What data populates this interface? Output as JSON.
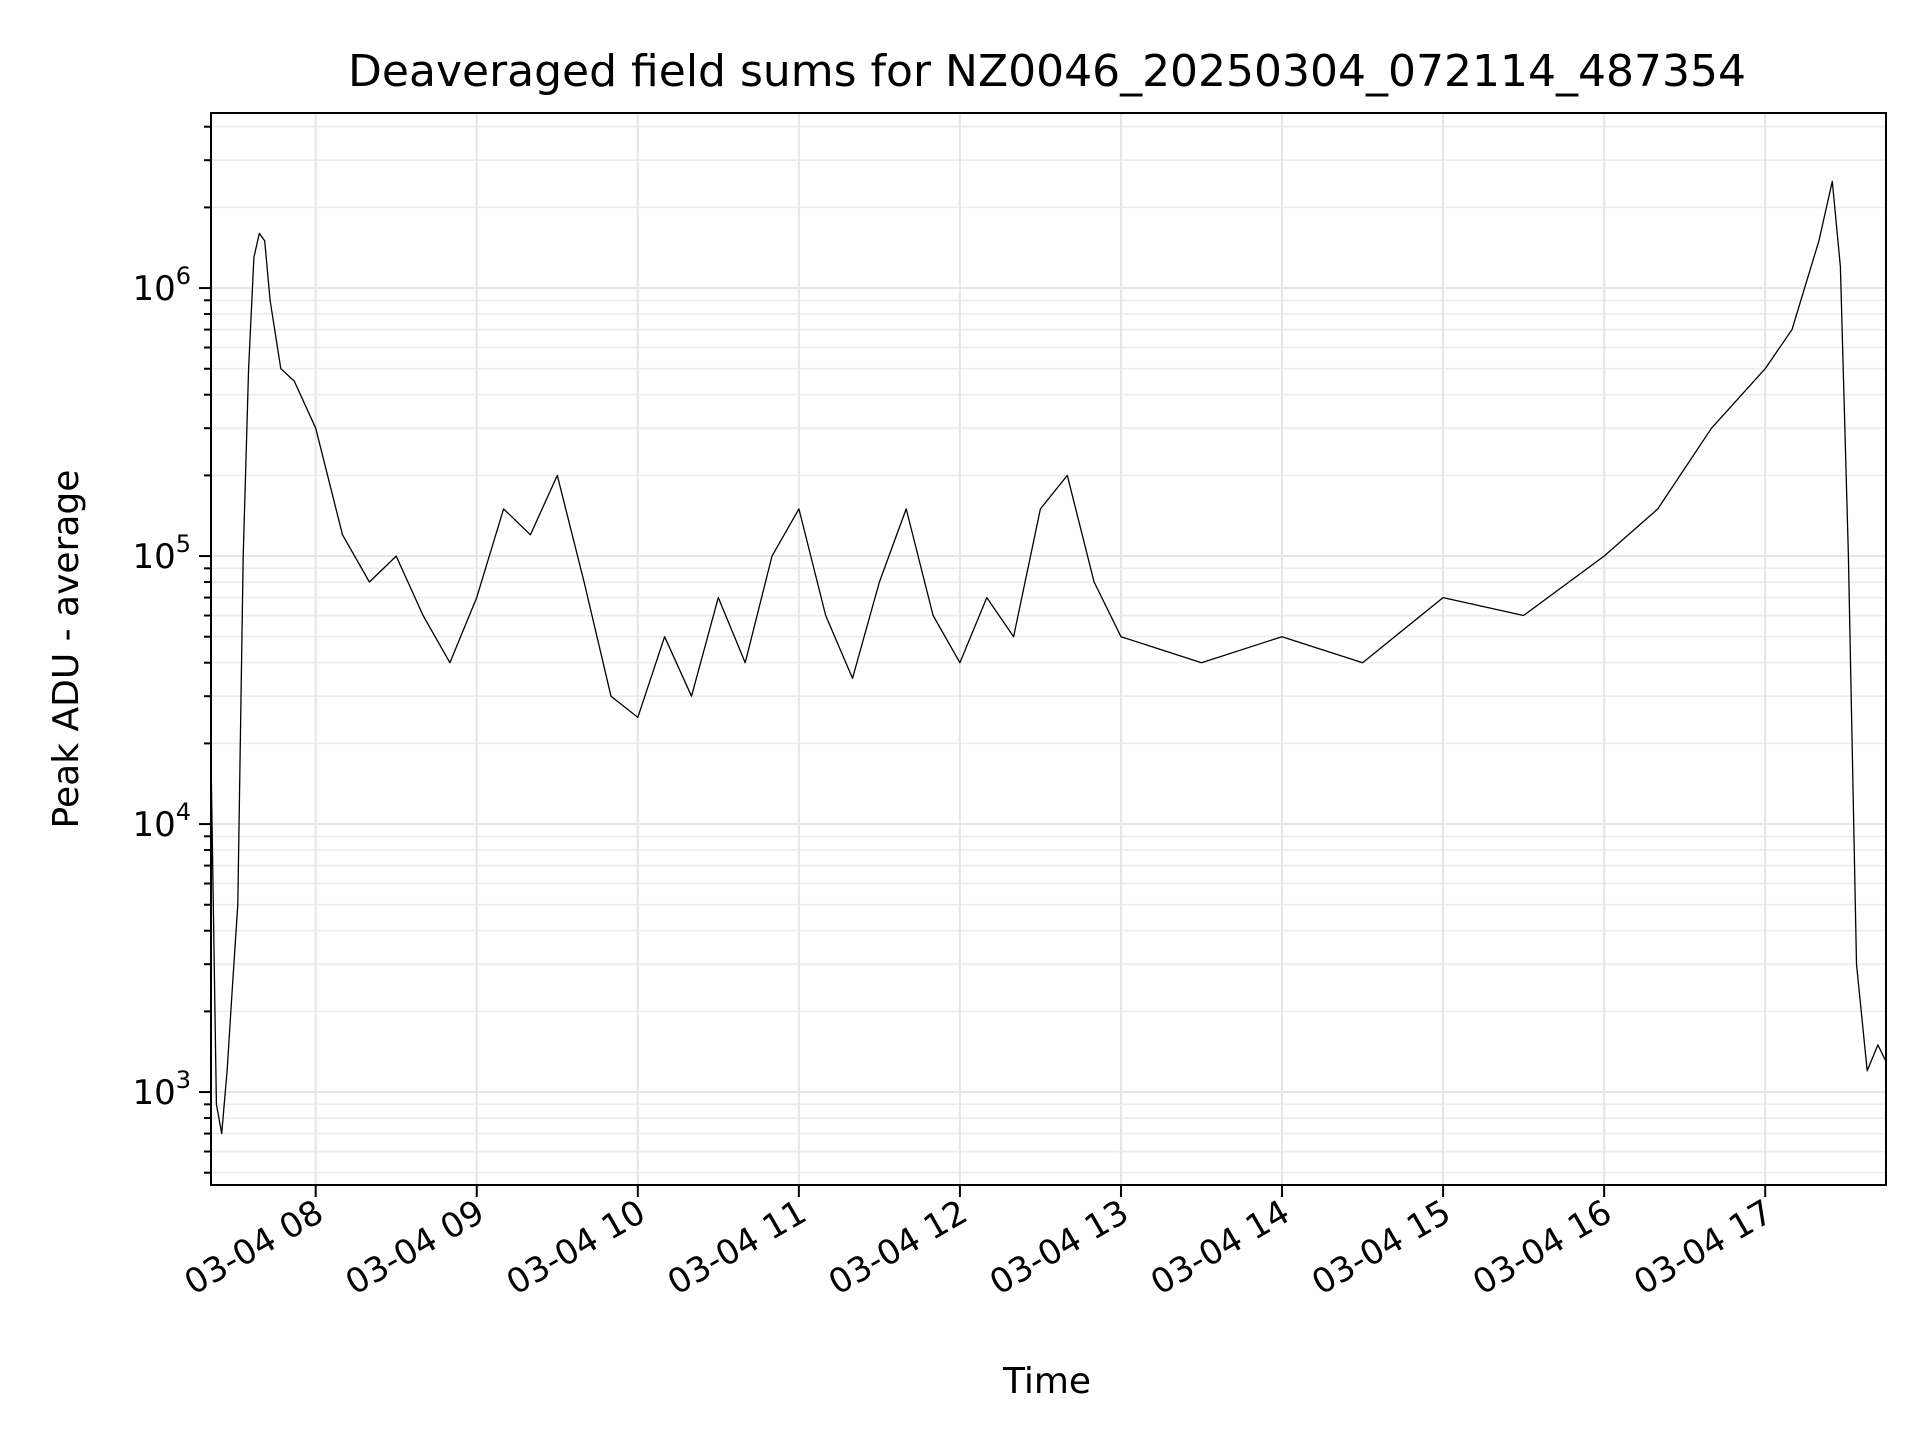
{
  "chart_data": {
    "type": "line",
    "title": "Deaveraged field sums for NZ0046_20250304_072114_487354",
    "xlabel": "Time",
    "ylabel": "Peak ADU - average",
    "yscale": "log",
    "grid": true,
    "x_range": [
      "2025-03-04 07:21",
      "2025-03-04 17:45"
    ],
    "ylim": [
      450,
      4500000
    ],
    "x_ticks": [
      {
        "label": "03-04 08",
        "time": "2025-03-04 08:00"
      },
      {
        "label": "03-04 09",
        "time": "2025-03-04 09:00"
      },
      {
        "label": "03-04 10",
        "time": "2025-03-04 10:00"
      },
      {
        "label": "03-04 11",
        "time": "2025-03-04 11:00"
      },
      {
        "label": "03-04 12",
        "time": "2025-03-04 12:00"
      },
      {
        "label": "03-04 13",
        "time": "2025-03-04 13:00"
      },
      {
        "label": "03-04 14",
        "time": "2025-03-04 14:00"
      },
      {
        "label": "03-04 15",
        "time": "2025-03-04 15:00"
      },
      {
        "label": "03-04 16",
        "time": "2025-03-04 16:00"
      },
      {
        "label": "03-04 17",
        "time": "2025-03-04 17:00"
      }
    ],
    "y_ticks": [
      {
        "base": "10",
        "exp": "3",
        "value": 1000
      },
      {
        "base": "10",
        "exp": "4",
        "value": 10000
      },
      {
        "base": "10",
        "exp": "5",
        "value": 100000
      },
      {
        "base": "10",
        "exp": "6",
        "value": 1000000
      }
    ],
    "series": [
      {
        "color": "#000000",
        "points": [
          [
            "2025-03-04 07:21",
            18000
          ],
          [
            "2025-03-04 07:23",
            900
          ],
          [
            "2025-03-04 07:25",
            700
          ],
          [
            "2025-03-04 07:27",
            1200
          ],
          [
            "2025-03-04 07:29",
            2500
          ],
          [
            "2025-03-04 07:31",
            5000
          ],
          [
            "2025-03-04 07:33",
            100000
          ],
          [
            "2025-03-04 07:35",
            500000
          ],
          [
            "2025-03-04 07:37",
            1300000
          ],
          [
            "2025-03-04 07:39",
            1600000
          ],
          [
            "2025-03-04 07:41",
            1500000
          ],
          [
            "2025-03-04 07:43",
            900000
          ],
          [
            "2025-03-04 07:47",
            500000
          ],
          [
            "2025-03-04 07:52",
            450000
          ],
          [
            "2025-03-04 08:00",
            300000
          ],
          [
            "2025-03-04 08:10",
            120000
          ],
          [
            "2025-03-04 08:20",
            80000
          ],
          [
            "2025-03-04 08:30",
            100000
          ],
          [
            "2025-03-04 08:40",
            60000
          ],
          [
            "2025-03-04 08:50",
            40000
          ],
          [
            "2025-03-04 09:00",
            70000
          ],
          [
            "2025-03-04 09:10",
            150000
          ],
          [
            "2025-03-04 09:20",
            120000
          ],
          [
            "2025-03-04 09:30",
            200000
          ],
          [
            "2025-03-04 09:40",
            80000
          ],
          [
            "2025-03-04 09:50",
            30000
          ],
          [
            "2025-03-04 10:00",
            25000
          ],
          [
            "2025-03-04 10:10",
            50000
          ],
          [
            "2025-03-04 10:20",
            30000
          ],
          [
            "2025-03-04 10:30",
            70000
          ],
          [
            "2025-03-04 10:40",
            40000
          ],
          [
            "2025-03-04 10:50",
            100000
          ],
          [
            "2025-03-04 11:00",
            150000
          ],
          [
            "2025-03-04 11:10",
            60000
          ],
          [
            "2025-03-04 11:20",
            35000
          ],
          [
            "2025-03-04 11:30",
            80000
          ],
          [
            "2025-03-04 11:40",
            150000
          ],
          [
            "2025-03-04 11:50",
            60000
          ],
          [
            "2025-03-04 12:00",
            40000
          ],
          [
            "2025-03-04 12:10",
            70000
          ],
          [
            "2025-03-04 12:20",
            50000
          ],
          [
            "2025-03-04 12:30",
            150000
          ],
          [
            "2025-03-04 12:40",
            200000
          ],
          [
            "2025-03-04 12:50",
            80000
          ],
          [
            "2025-03-04 13:00",
            50000
          ],
          [
            "2025-03-04 13:30",
            40000
          ],
          [
            "2025-03-04 14:00",
            50000
          ],
          [
            "2025-03-04 14:30",
            40000
          ],
          [
            "2025-03-04 15:00",
            70000
          ],
          [
            "2025-03-04 15:30",
            60000
          ],
          [
            "2025-03-04 16:00",
            100000
          ],
          [
            "2025-03-04 16:20",
            150000
          ],
          [
            "2025-03-04 16:40",
            300000
          ],
          [
            "2025-03-04 17:00",
            500000
          ],
          [
            "2025-03-04 17:10",
            700000
          ],
          [
            "2025-03-04 17:20",
            1500000
          ],
          [
            "2025-03-04 17:25",
            2500000
          ],
          [
            "2025-03-04 17:28",
            1200000
          ],
          [
            "2025-03-04 17:31",
            100000
          ],
          [
            "2025-03-04 17:34",
            3000
          ],
          [
            "2025-03-04 17:38",
            1200
          ],
          [
            "2025-03-04 17:42",
            1500
          ],
          [
            "2025-03-04 17:45",
            1300
          ]
        ]
      }
    ]
  }
}
